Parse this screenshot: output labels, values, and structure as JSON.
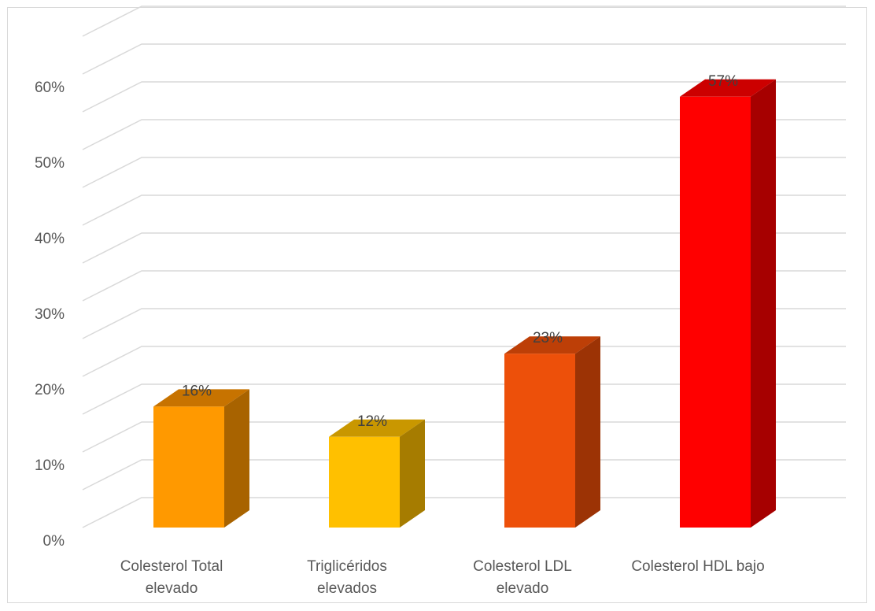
{
  "chart_data": {
    "type": "bar",
    "categories": [
      [
        "Colesterol Total",
        "elevado"
      ],
      [
        "Triglicéridos",
        "elevados"
      ],
      [
        "Colesterol LDL",
        "elevado"
      ],
      [
        "Colesterol HDL bajo"
      ]
    ],
    "values": [
      16,
      12,
      23,
      57
    ],
    "data_labels": [
      "16%",
      "12%",
      "23%",
      "57%"
    ],
    "y_ticks": [
      0,
      10,
      20,
      30,
      40,
      50,
      60
    ],
    "y_tick_labels": [
      "0%",
      "10%",
      "20%",
      "30%",
      "40%",
      "50%",
      "60%"
    ],
    "ylim": [
      0,
      60
    ],
    "grid": true,
    "style_3d": true,
    "legend": "none",
    "colors": {
      "front": [
        "#ff9900",
        "#ffc000",
        "#ed500a",
        "#ff0000"
      ],
      "side": [
        "#a86300",
        "#a67c00",
        "#9c3305",
        "#a60000"
      ],
      "top": [
        "#c77300",
        "#c99700",
        "#bd3f07",
        "#cc0000"
      ],
      "grid": "#d9d9d9",
      "text": "#595959"
    }
  }
}
